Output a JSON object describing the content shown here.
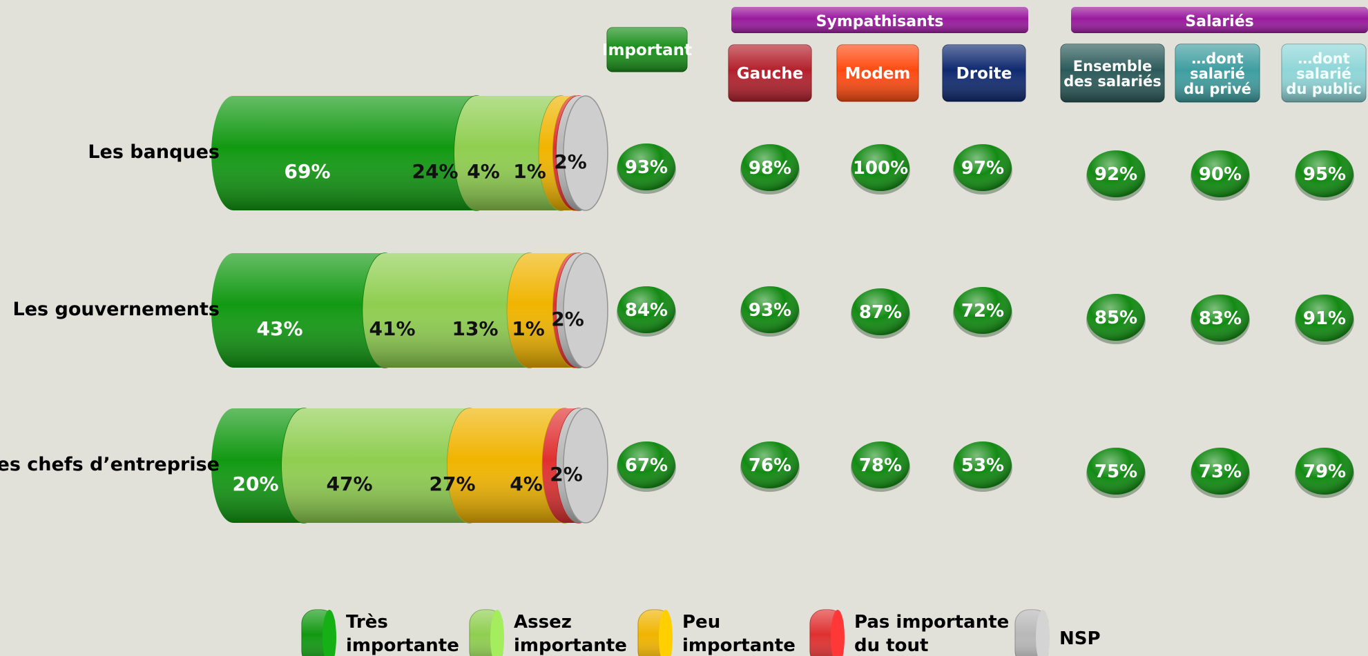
{
  "chart_data": {
    "type": "bar",
    "categories": [
      "Les banques",
      "Les gouvernements",
      "Les chefs d’entreprise"
    ],
    "series": [
      {
        "name": "Très importante",
        "color": "#129912",
        "values": [
          69,
          43,
          20
        ]
      },
      {
        "name": "Assez importante",
        "color": "#8fce50",
        "values": [
          24,
          41,
          47
        ]
      },
      {
        "name": "Peu importante",
        "color": "#f0b400",
        "values": [
          4,
          13,
          27
        ]
      },
      {
        "name": "Pas importante du tout",
        "color": "#e03030",
        "values": [
          1,
          1,
          4
        ]
      },
      {
        "name": "NSP",
        "color": "#b8b8b8",
        "values": [
          2,
          2,
          2
        ]
      }
    ],
    "labels": [
      [
        "69%",
        "24%",
        "4%",
        "1%",
        "2%"
      ],
      [
        "43%",
        "41%",
        "13%",
        "1%",
        "2%"
      ],
      [
        "20%",
        "47%",
        "27%",
        "4%",
        "2%"
      ]
    ],
    "legend_position": "bottom"
  },
  "groups": [
    {
      "label": "Sympathisants",
      "color": "#9a1a9e"
    },
    {
      "label": "Salariés",
      "color": "#9a1a9e"
    }
  ],
  "columns": [
    {
      "label": "Important",
      "color": "#1a8f1a",
      "values": [
        "93%",
        "84%",
        "67%"
      ]
    },
    {
      "label": "Gauche",
      "color": "#b3202c",
      "values": [
        "98%",
        "93%",
        "76%"
      ]
    },
    {
      "label": "Modem",
      "color": "#ff4a10",
      "values": [
        "100%",
        "87%",
        "78%"
      ]
    },
    {
      "label": "Droite",
      "color": "#0f2a70",
      "values": [
        "97%",
        "72%",
        "53%"
      ]
    },
    {
      "label": "Ensemble des salariés",
      "color": "#2c5a5a",
      "values": [
        "92%",
        "85%",
        "75%"
      ]
    },
    {
      "label": "…dont salarié du privé",
      "color": "#3f9ea0",
      "values": [
        "90%",
        "83%",
        "73%"
      ]
    },
    {
      "label": "…dont salarié du public",
      "color": "#8fd6d8",
      "values": [
        "95%",
        "91%",
        "79%"
      ]
    }
  ]
}
